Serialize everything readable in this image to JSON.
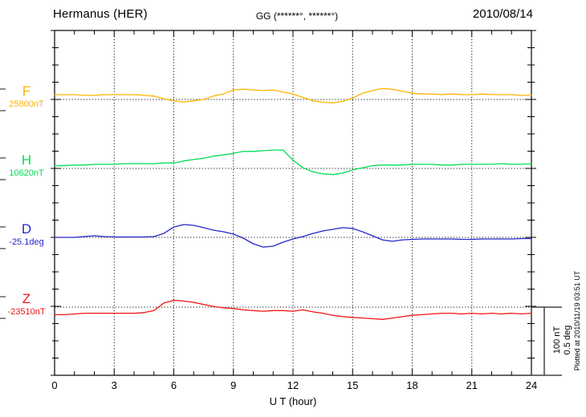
{
  "header": {
    "station": "Hermanus (HER)",
    "coords": "GG (******°, ******°)",
    "date": "2010/08/14"
  },
  "chart_data": {
    "type": "line",
    "title": "Hermanus (HER)",
    "date": "2010/08/14",
    "xlabel": "U T (hour)",
    "xlim": [
      0,
      24
    ],
    "x_tick_labels": [
      "0",
      "3",
      "6",
      "9",
      "12",
      "15",
      "18",
      "21",
      "24"
    ],
    "grid": "dotted vertical lines every 3 h; dotted horizontal baseline for each channel",
    "legend_position": "left-of-plot channel labels",
    "x_hours": [
      0,
      0.5,
      1,
      1.5,
      2,
      2.5,
      3,
      3.5,
      4,
      4.5,
      5,
      5.5,
      6,
      6.5,
      7,
      7.5,
      8,
      8.5,
      9,
      9.5,
      10,
      10.5,
      11,
      11.5,
      12,
      12.5,
      13,
      13.5,
      14,
      14.5,
      15,
      15.5,
      16,
      16.5,
      17,
      17.5,
      18,
      18.5,
      19,
      19.5,
      20,
      20.5,
      21,
      21.5,
      22,
      22.5,
      23,
      23.5,
      24
    ],
    "series": [
      {
        "id": "F",
        "label": "F",
        "base_label": "25800nT",
        "base_value": 25800,
        "unit": "nT",
        "color": "#FFB300",
        "values": [
          25807,
          25807,
          25807,
          25806,
          25806,
          25807,
          25807,
          25807,
          25807,
          25806,
          25805,
          25801,
          25798,
          25796,
          25798,
          25800,
          25805,
          25808,
          25814,
          25815,
          25814,
          25813,
          25814,
          25811,
          25808,
          25803,
          25798,
          25796,
          25795,
          25797,
          25802,
          25809,
          25813,
          25816,
          25815,
          25812,
          25809,
          25808,
          25808,
          25807,
          25808,
          25807,
          25807,
          25808,
          25807,
          25807,
          25807,
          25806,
          25806
        ]
      },
      {
        "id": "H",
        "label": "H",
        "base_label": "10620nT",
        "base_value": 10620,
        "unit": "nT",
        "color": "#00DE54",
        "values": [
          10624,
          10624,
          10625,
          10625,
          10626,
          10626,
          10626,
          10627,
          10627,
          10627,
          10627,
          10628,
          10628,
          10631,
          10633,
          10635,
          10638,
          10640,
          10642,
          10645,
          10645,
          10646,
          10647,
          10647,
          10632,
          10621,
          10615,
          10612,
          10611,
          10613,
          10618,
          10621,
          10624,
          10625,
          10625,
          10625,
          10626,
          10626,
          10626,
          10625,
          10625,
          10626,
          10626,
          10626,
          10626,
          10627,
          10626,
          10626,
          10627
        ]
      },
      {
        "id": "D",
        "label": "D",
        "base_label": "-25.1deg",
        "base_value": -25.1,
        "unit": "deg",
        "color": "#2626CC",
        "values": [
          -25.1,
          -25.1,
          -25.1,
          -25.094,
          -25.088,
          -25.094,
          -25.097,
          -25.097,
          -25.097,
          -25.097,
          -25.094,
          -25.071,
          -25.024,
          -25.006,
          -25.012,
          -25.029,
          -25.047,
          -25.059,
          -25.076,
          -25.106,
          -25.147,
          -25.171,
          -25.165,
          -25.135,
          -25.112,
          -25.094,
          -25.071,
          -25.053,
          -25.041,
          -25.029,
          -25.035,
          -25.059,
          -25.088,
          -25.118,
          -25.129,
          -25.118,
          -25.115,
          -25.112,
          -25.112,
          -25.112,
          -25.112,
          -25.115,
          -25.115,
          -25.112,
          -25.112,
          -25.112,
          -25.112,
          -25.109,
          -25.109
        ]
      },
      {
        "id": "Z",
        "label": "Z",
        "base_label": "-23510nT",
        "base_value": -23510,
        "unit": "nT",
        "color": "#F21414",
        "values": [
          -23521,
          -23521,
          -23520,
          -23519,
          -23519,
          -23519,
          -23519,
          -23519,
          -23519,
          -23518,
          -23515,
          -23504,
          -23500,
          -23501,
          -23503,
          -23506,
          -23509,
          -23511,
          -23512,
          -23514,
          -23515,
          -23516,
          -23515,
          -23515,
          -23516,
          -23514,
          -23517,
          -23519,
          -23522,
          -23524,
          -23525,
          -23526,
          -23527,
          -23528,
          -23526,
          -23524,
          -23522,
          -23521,
          -23520,
          -23519,
          -23519,
          -23520,
          -23519,
          -23520,
          -23519,
          -23520,
          -23519,
          -23520,
          -23519
        ]
      }
    ],
    "scale_bar": {
      "line1": "100 nT",
      "line2": "0.5 deg",
      "nT_per_div": 100,
      "deg_per_div": 0.5
    },
    "plotted_at": "Plotted at 2010/11/19 03:51 UT"
  }
}
